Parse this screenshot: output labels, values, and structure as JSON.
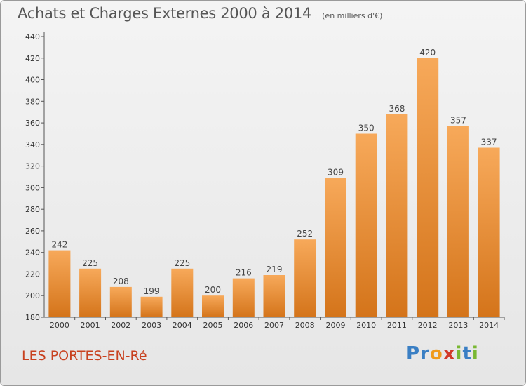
{
  "header": {
    "title": "Achats et Charges Externes 2000 à 2014",
    "unit": "(en milliers d'€)"
  },
  "footer": {
    "place": "LES PORTES-EN-Ré",
    "logo": [
      "P",
      "r",
      "o",
      "x",
      "i",
      "t",
      "i"
    ]
  },
  "colors": {
    "bar_light": "#f7a95a",
    "bar_dark": "#d4741a",
    "place": "#c8411f",
    "logo": [
      "#3a7fc4",
      "#3a7fc4",
      "#f09a1a",
      "#d23a2a",
      "#79b833",
      "#3a7fc4",
      "#79b833"
    ]
  },
  "chart_data": {
    "type": "bar",
    "title": "Achats et Charges Externes 2000 à 2014",
    "subtitle": "(en milliers d'€)",
    "categories": [
      "2000",
      "2001",
      "2002",
      "2003",
      "2004",
      "2005",
      "2006",
      "2007",
      "2008",
      "2009",
      "2010",
      "2011",
      "2012",
      "2013",
      "2014"
    ],
    "values": [
      242,
      225,
      208,
      199,
      225,
      200,
      216,
      219,
      252,
      309,
      350,
      368,
      420,
      357,
      337
    ],
    "ylim": [
      180,
      440
    ],
    "yticks": [
      180,
      200,
      220,
      240,
      260,
      280,
      300,
      320,
      340,
      360,
      380,
      400,
      420,
      440
    ],
    "grid": false,
    "data_labels": true
  }
}
